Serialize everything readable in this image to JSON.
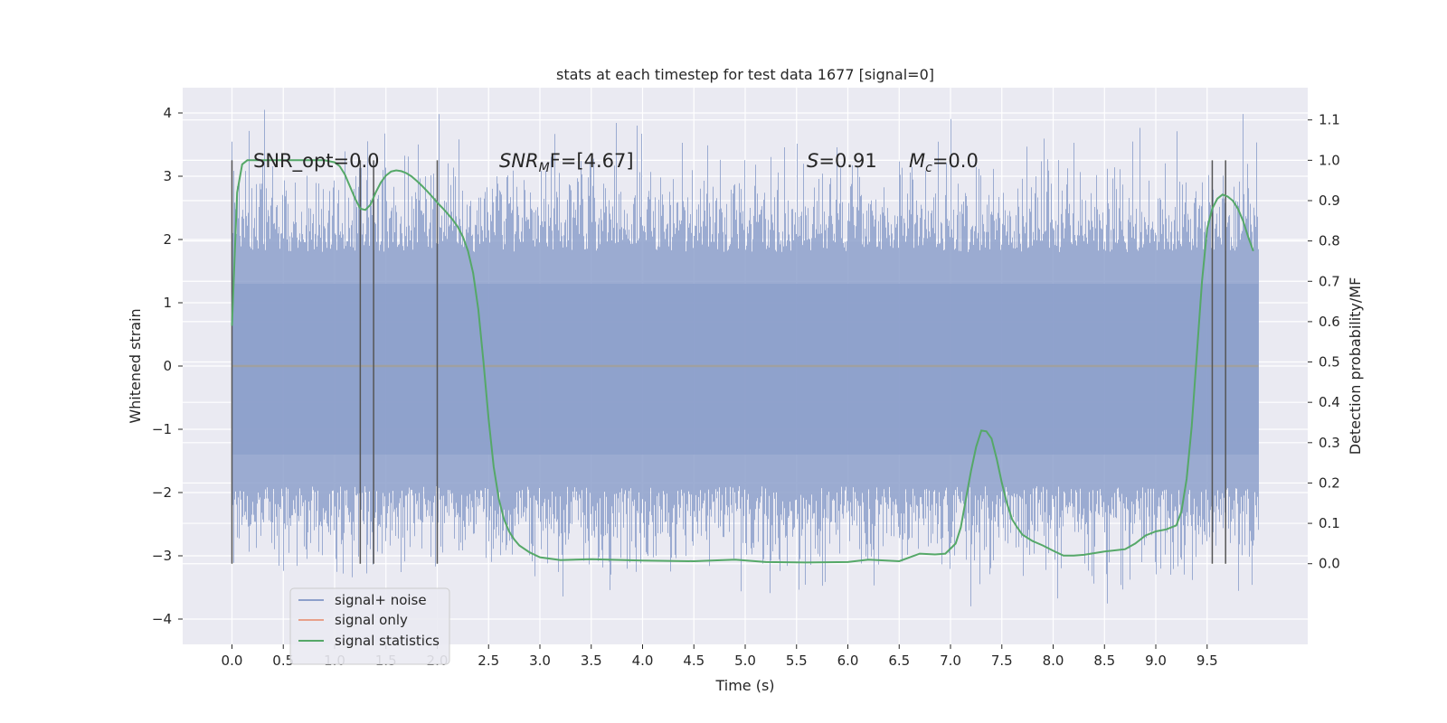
{
  "chart_data": {
    "type": "line",
    "title": "stats at each timestep for test data 1677 [signal=0]",
    "xlabel": "Time (s)",
    "ylabel": "Whitened strain",
    "y2label": "Detection probability/MF",
    "xlim": [
      -0.48,
      10.48
    ],
    "ylim": [
      -4.4,
      4.4
    ],
    "y2lim": [
      -0.2,
      1.18
    ],
    "xticks": [
      0.0,
      0.5,
      1.0,
      1.5,
      2.0,
      2.5,
      3.0,
      3.5,
      4.0,
      4.5,
      5.0,
      5.5,
      6.0,
      6.5,
      7.0,
      7.5,
      8.0,
      8.5,
      9.0,
      9.5
    ],
    "xtick_labels": [
      "0.0",
      "0.5",
      "1.0",
      "1.5",
      "2.0",
      "2.5",
      "3.0",
      "3.5",
      "4.0",
      "4.5",
      "5.0",
      "5.5",
      "6.0",
      "6.5",
      "7.0",
      "7.5",
      "8.0",
      "8.5",
      "9.0",
      "9.5"
    ],
    "yticks": [
      -4,
      -3,
      -2,
      -1,
      0,
      1,
      2,
      3,
      4
    ],
    "ytick_labels": [
      "−4",
      "−3",
      "−2",
      "−1",
      "0",
      "1",
      "2",
      "3",
      "4"
    ],
    "y2ticks": [
      0.0,
      0.1,
      0.2,
      0.3,
      0.4,
      0.5,
      0.6,
      0.7,
      0.8,
      0.9,
      1.0,
      1.1
    ],
    "y2tick_labels": [
      "0.0",
      "0.1",
      "0.2",
      "0.3",
      "0.4",
      "0.5",
      "0.6",
      "0.7",
      "0.8",
      "0.9",
      "1.0",
      "1.1"
    ],
    "grid": true,
    "legend_position": "lower-left",
    "legend": [
      "signal+ noise",
      "signal only",
      "signal statistics"
    ],
    "annotations": {
      "snr_opt": "SNR_opt=0.0",
      "snr_mf_main": "SNR",
      "snr_mf_sub": "M",
      "snr_mf_rest": "F=[4.67]",
      "s_main": "S",
      "s_rest": "=0.91",
      "mc_main": "M",
      "mc_sub": "c",
      "mc_rest": "=0.0"
    },
    "colors": {
      "signal_noise": "#8da0cb",
      "signal_only": "#e8a08a",
      "signal_statistics": "#55a868",
      "background": "#eaeaf2",
      "grid": "#ffffff",
      "vlines": "#555555"
    },
    "series": [
      {
        "name": "signal statistics",
        "axis": "right",
        "x": [
          0.0,
          0.05,
          0.1,
          0.15,
          0.2,
          0.3,
          0.4,
          0.5,
          0.6,
          0.7,
          0.8,
          0.9,
          1.0,
          1.05,
          1.1,
          1.15,
          1.2,
          1.25,
          1.3,
          1.35,
          1.4,
          1.45,
          1.5,
          1.55,
          1.6,
          1.65,
          1.7,
          1.75,
          1.8,
          1.85,
          1.9,
          1.95,
          2.0,
          2.05,
          2.1,
          2.15,
          2.2,
          2.25,
          2.3,
          2.35,
          2.4,
          2.45,
          2.5,
          2.55,
          2.6,
          2.65,
          2.7,
          2.75,
          2.8,
          2.9,
          3.0,
          3.2,
          3.5,
          4.0,
          4.5,
          4.9,
          5.2,
          5.6,
          6.0,
          6.2,
          6.5,
          6.7,
          6.85,
          6.95,
          7.05,
          7.1,
          7.15,
          7.2,
          7.25,
          7.3,
          7.35,
          7.4,
          7.45,
          7.5,
          7.55,
          7.6,
          7.65,
          7.7,
          7.8,
          7.9,
          8.0,
          8.1,
          8.2,
          8.3,
          8.5,
          8.7,
          8.8,
          8.9,
          9.0,
          9.1,
          9.2,
          9.25,
          9.3,
          9.35,
          9.4,
          9.45,
          9.5,
          9.55,
          9.6,
          9.65,
          9.7,
          9.75,
          9.8,
          9.85,
          9.9,
          9.95
        ],
        "y": [
          0.59,
          0.92,
          0.99,
          1.0,
          1.0,
          1.0,
          1.0,
          1.0,
          1.0,
          1.0,
          1.0,
          1.0,
          0.995,
          0.985,
          0.965,
          0.935,
          0.905,
          0.88,
          0.877,
          0.89,
          0.92,
          0.945,
          0.962,
          0.972,
          0.975,
          0.973,
          0.968,
          0.96,
          0.949,
          0.937,
          0.924,
          0.91,
          0.895,
          0.882,
          0.868,
          0.853,
          0.835,
          0.81,
          0.775,
          0.72,
          0.63,
          0.5,
          0.36,
          0.24,
          0.16,
          0.11,
          0.08,
          0.06,
          0.045,
          0.028,
          0.016,
          0.009,
          0.011,
          0.008,
          0.006,
          0.01,
          0.004,
          0.003,
          0.004,
          0.01,
          0.006,
          0.025,
          0.023,
          0.025,
          0.05,
          0.09,
          0.16,
          0.23,
          0.29,
          0.33,
          0.328,
          0.31,
          0.26,
          0.2,
          0.15,
          0.11,
          0.09,
          0.072,
          0.056,
          0.045,
          0.032,
          0.02,
          0.02,
          0.022,
          0.03,
          0.036,
          0.05,
          0.07,
          0.08,
          0.085,
          0.095,
          0.13,
          0.21,
          0.34,
          0.52,
          0.7,
          0.83,
          0.88,
          0.905,
          0.915,
          0.91,
          0.9,
          0.88,
          0.85,
          0.81,
          0.775
        ]
      }
    ],
    "reference_lines": [
      0.0,
      1.25,
      1.38,
      2.0,
      9.55,
      9.68
    ]
  }
}
